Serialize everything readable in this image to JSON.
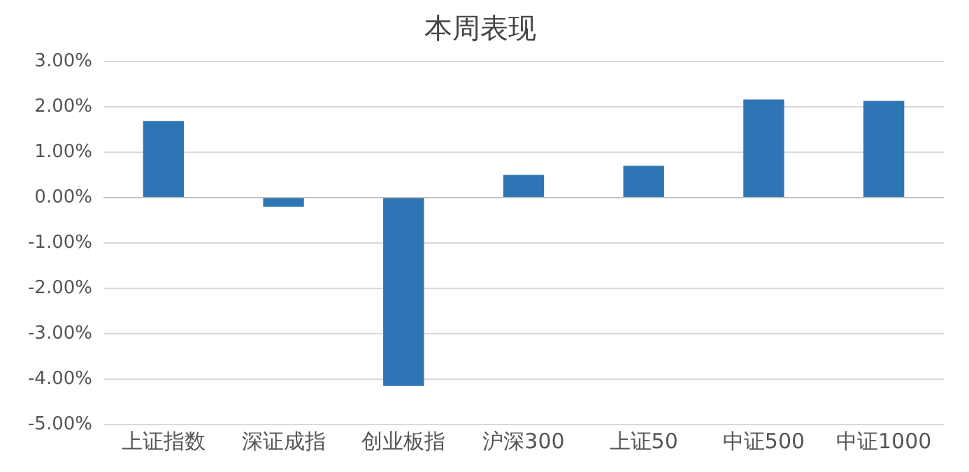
{
  "chart_data": {
    "type": "bar",
    "title": "本周表现",
    "categories": [
      "上证指数",
      "深证成指",
      "创业板指",
      "沪深300",
      "上证50",
      "中证500",
      "中证1000"
    ],
    "values": [
      1.69,
      -0.2,
      -4.15,
      0.5,
      0.7,
      2.16,
      2.13
    ],
    "color": "#2e75b6",
    "ylim": [
      -5,
      3
    ],
    "yticks": [
      {
        "value": -5,
        "label": "-5.00%"
      },
      {
        "value": -4,
        "label": "-4.00%"
      },
      {
        "value": -3,
        "label": "-3.00%"
      },
      {
        "value": -2,
        "label": "-2.00%"
      },
      {
        "value": -1,
        "label": "-1.00%"
      },
      {
        "value": 0,
        "label": "0.00%"
      },
      {
        "value": 1,
        "label": "1.00%"
      },
      {
        "value": 2,
        "label": "2.00%"
      },
      {
        "value": 3,
        "label": "3.00%"
      }
    ],
    "grid": "y",
    "legend": false
  }
}
